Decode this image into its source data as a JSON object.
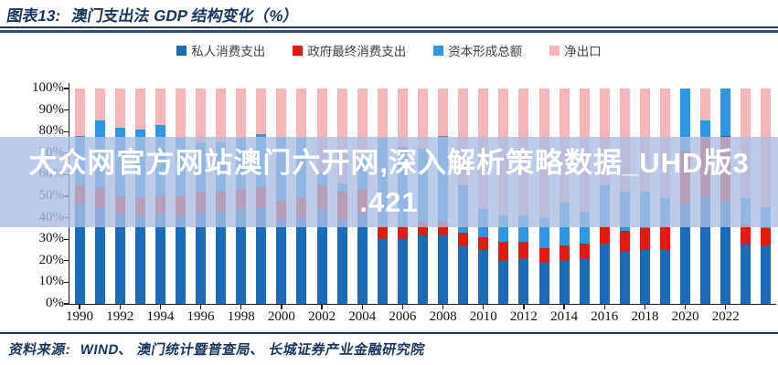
{
  "title": {
    "prefix": "图表13:",
    "text": "澳门支出法 GDP 结构变化（%）"
  },
  "watermark": {
    "line1": "大众网官方网站澳门六开网,深入解析策略数据_UHD版3",
    "line2": ".421"
  },
  "source": {
    "label": "资料来源:",
    "text": "WIND、 澳门统计暨普查局、 长城证券产业金融研究院"
  },
  "chart_data": {
    "type": "bar",
    "stacked": true,
    "stack_total": 100,
    "title": "澳门支出法 GDP 结构变化（%）",
    "xlabel": "",
    "ylabel": "",
    "ylim": [
      0,
      100
    ],
    "grid": false,
    "legend_position": "top-center",
    "categories": [
      1990,
      1991,
      1992,
      1993,
      1994,
      1995,
      1996,
      1997,
      1998,
      1999,
      2000,
      2001,
      2002,
      2003,
      2004,
      2005,
      2006,
      2007,
      2008,
      2009,
      2010,
      2011,
      2012,
      2013,
      2014,
      2015,
      2016,
      2017,
      2018,
      2019,
      2020,
      2021,
      2022,
      2023,
      2024
    ],
    "x_tick_labels": [
      "1990",
      "1992",
      "1994",
      "1996",
      "1998",
      "2000",
      "2002",
      "2004",
      "2006",
      "2008",
      "2010",
      "2012",
      "2014",
      "2016",
      "2018",
      "2020",
      "2022"
    ],
    "y_tick_labels": [
      "0%",
      "10%",
      "20%",
      "30%",
      "40%",
      "50%",
      "60%",
      "70%",
      "80%",
      "90%",
      "100%"
    ],
    "series": [
      {
        "name": "私人消费支出",
        "key": "private-consumption",
        "color": "#1b6cb8",
        "values": [
          46,
          45,
          42,
          41,
          42,
          41,
          43,
          43,
          44,
          45,
          39,
          40,
          44,
          39,
          42,
          30,
          30,
          32,
          32,
          27,
          25,
          20,
          21,
          19,
          20,
          21,
          28,
          24,
          25,
          25,
          46,
          50,
          48,
          28,
          27
        ]
      },
      {
        "name": "政府最终消费支出",
        "key": "government-consumption",
        "color": "#e11b12",
        "values": [
          9,
          9,
          8,
          8,
          8,
          9,
          9,
          9,
          9,
          9,
          9,
          9,
          11,
          13,
          11,
          6,
          6,
          6,
          6,
          6,
          6,
          9,
          8,
          7,
          7,
          7,
          8,
          10,
          10,
          11,
          25,
          27,
          30,
          9,
          8
        ]
      },
      {
        "name": "资本形成总额",
        "key": "capital-formation",
        "color": "#2e96e2",
        "values": [
          23,
          31,
          32,
          32,
          33,
          27,
          23,
          23,
          24,
          25,
          29,
          28,
          6,
          4,
          15,
          41,
          37,
          34,
          40,
          22,
          13,
          12,
          12,
          14,
          20,
          15,
          19,
          18,
          17,
          13,
          29,
          8,
          22,
          12,
          10
        ]
      },
      {
        "name": "净出口",
        "key": "net-exports",
        "color": "#f4b6b9",
        "values": [
          22,
          15,
          18,
          19,
          17,
          23,
          25,
          25,
          23,
          21,
          23,
          23,
          39,
          44,
          32,
          23,
          27,
          28,
          22,
          45,
          56,
          59,
          59,
          60,
          53,
          57,
          45,
          48,
          48,
          51,
          0,
          15,
          0,
          51,
          55
        ]
      }
    ]
  }
}
